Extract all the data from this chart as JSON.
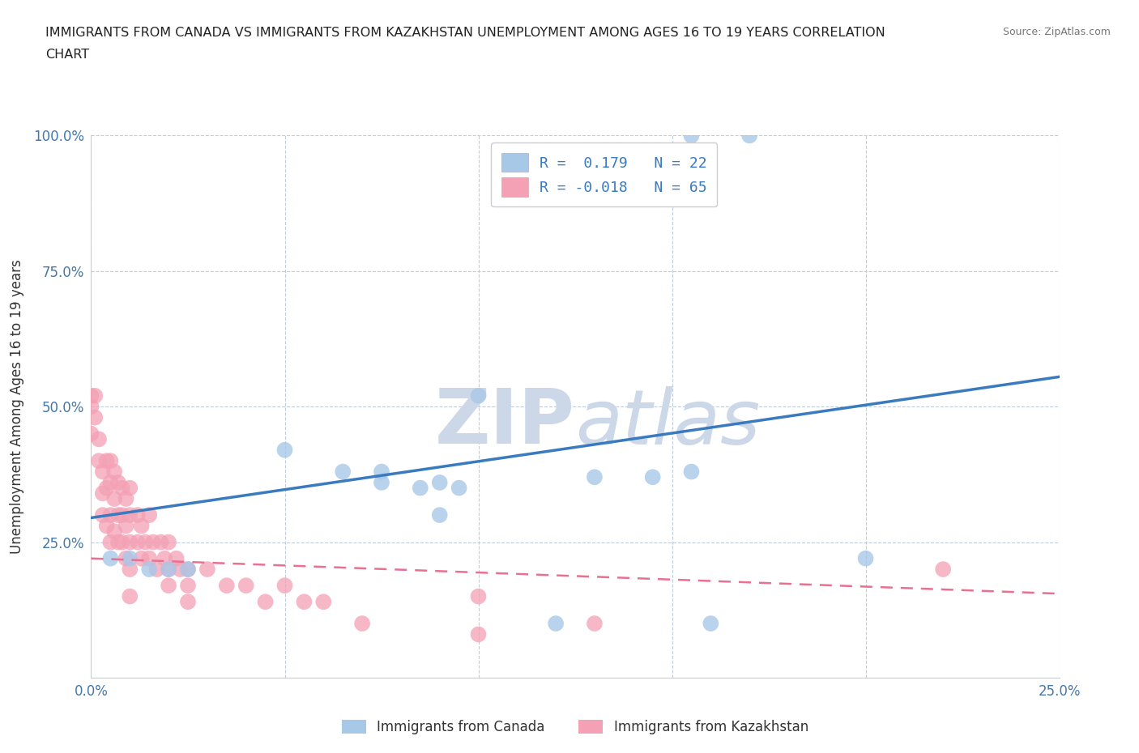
{
  "title_line1": "IMMIGRANTS FROM CANADA VS IMMIGRANTS FROM KAZAKHSTAN UNEMPLOYMENT AMONG AGES 16 TO 19 YEARS CORRELATION",
  "title_line2": "CHART",
  "source": "Source: ZipAtlas.com",
  "ylabel": "Unemployment Among Ages 16 to 19 years",
  "xlim": [
    0,
    0.25
  ],
  "ylim": [
    0,
    1.0
  ],
  "canada_R": 0.179,
  "canada_N": 22,
  "kazakhstan_R": -0.018,
  "kazakhstan_N": 65,
  "canada_color": "#a8c8e8",
  "kazakhstan_color": "#f4a0b5",
  "canada_trend_color": "#3a7abf",
  "kazakhstan_trend_color": "#e87090",
  "watermark_color": "#ccd8e8",
  "background_color": "#ffffff",
  "canada_x": [
    0.155,
    0.17,
    0.1,
    0.05,
    0.065,
    0.075,
    0.075,
    0.085,
    0.09,
    0.095,
    0.09,
    0.13,
    0.145,
    0.155,
    0.005,
    0.01,
    0.015,
    0.02,
    0.025,
    0.2,
    0.16,
    0.12
  ],
  "canada_y": [
    1.0,
    1.0,
    0.52,
    0.42,
    0.38,
    0.38,
    0.36,
    0.35,
    0.36,
    0.35,
    0.3,
    0.37,
    0.37,
    0.38,
    0.22,
    0.22,
    0.2,
    0.2,
    0.2,
    0.22,
    0.1,
    0.1
  ],
  "kazakhstan_x": [
    0.0,
    0.0,
    0.0,
    0.001,
    0.001,
    0.002,
    0.002,
    0.003,
    0.003,
    0.003,
    0.004,
    0.004,
    0.004,
    0.005,
    0.005,
    0.005,
    0.005,
    0.006,
    0.006,
    0.006,
    0.007,
    0.007,
    0.007,
    0.008,
    0.008,
    0.008,
    0.009,
    0.009,
    0.009,
    0.01,
    0.01,
    0.01,
    0.01,
    0.01,
    0.012,
    0.012,
    0.013,
    0.013,
    0.014,
    0.015,
    0.015,
    0.016,
    0.017,
    0.018,
    0.019,
    0.02,
    0.02,
    0.02,
    0.022,
    0.023,
    0.025,
    0.025,
    0.025,
    0.03,
    0.035,
    0.04,
    0.045,
    0.05,
    0.055,
    0.06,
    0.07,
    0.1,
    0.1,
    0.13,
    0.22
  ],
  "kazakhstan_y": [
    0.52,
    0.5,
    0.45,
    0.52,
    0.48,
    0.44,
    0.4,
    0.38,
    0.34,
    0.3,
    0.4,
    0.35,
    0.28,
    0.4,
    0.36,
    0.3,
    0.25,
    0.38,
    0.33,
    0.27,
    0.36,
    0.3,
    0.25,
    0.35,
    0.3,
    0.25,
    0.33,
    0.28,
    0.22,
    0.35,
    0.3,
    0.25,
    0.2,
    0.15,
    0.3,
    0.25,
    0.28,
    0.22,
    0.25,
    0.3,
    0.22,
    0.25,
    0.2,
    0.25,
    0.22,
    0.25,
    0.2,
    0.17,
    0.22,
    0.2,
    0.2,
    0.17,
    0.14,
    0.2,
    0.17,
    0.17,
    0.14,
    0.17,
    0.14,
    0.14,
    0.1,
    0.15,
    0.08,
    0.1,
    0.2
  ]
}
